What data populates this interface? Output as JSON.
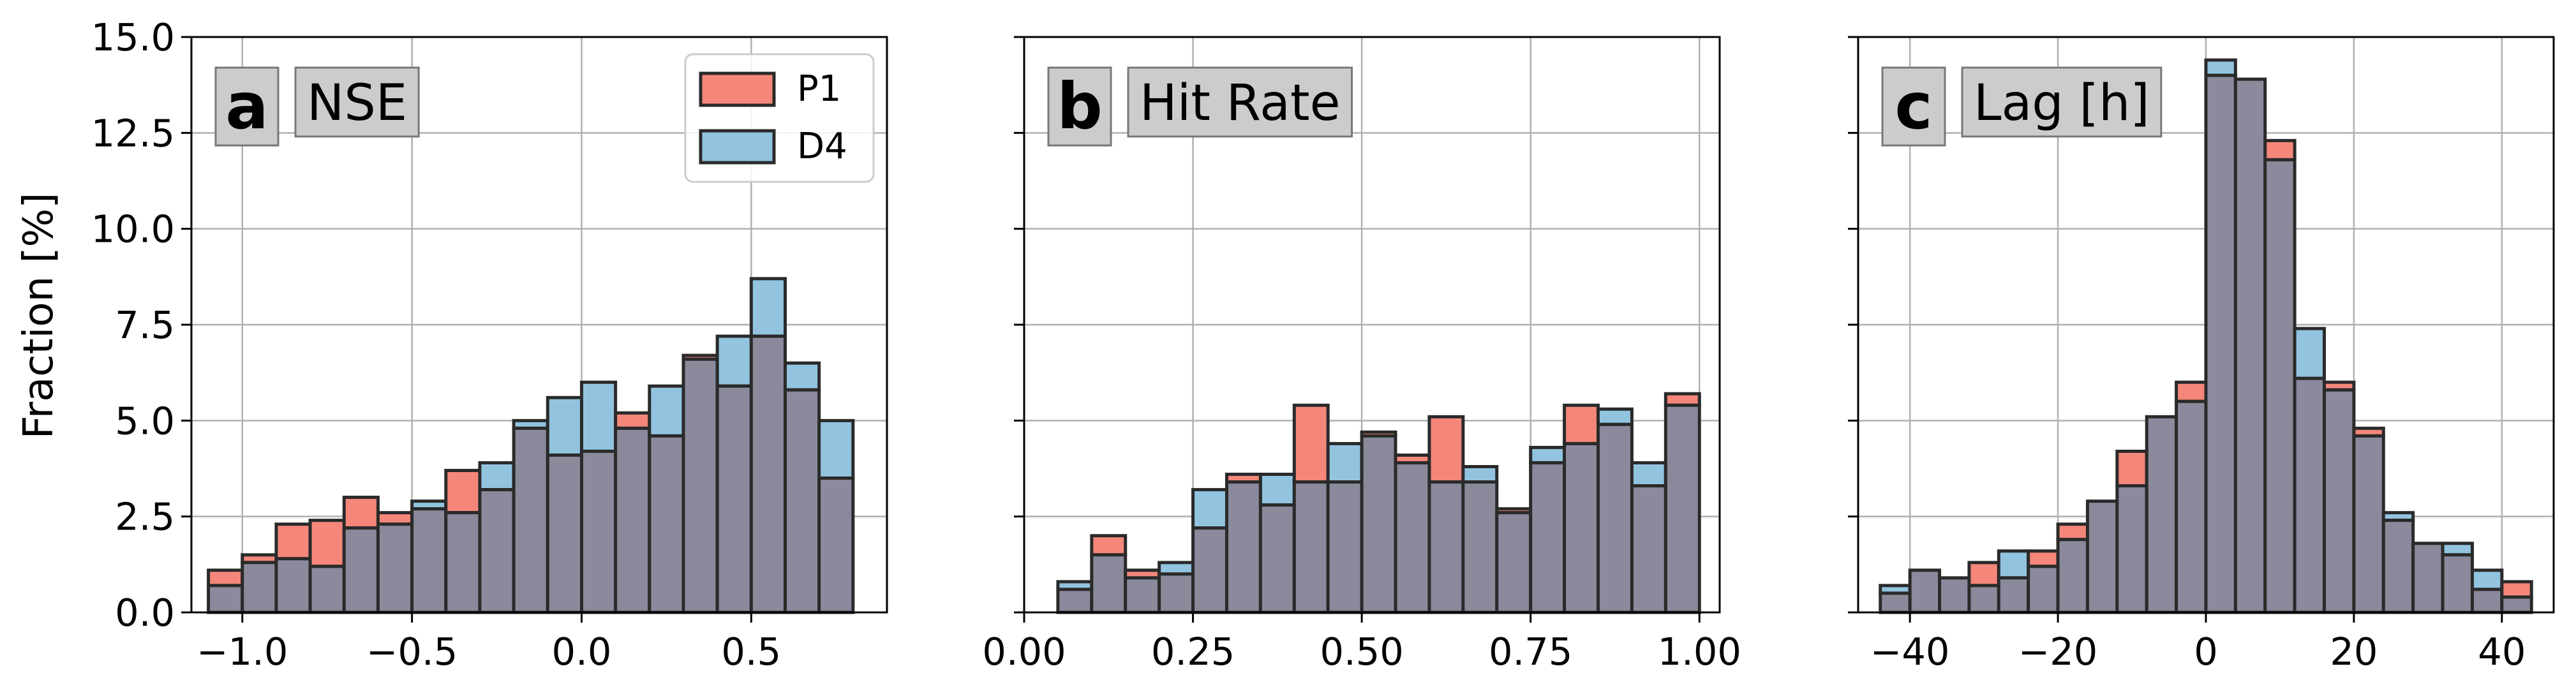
{
  "figure": {
    "ylabel": "Fraction [%]",
    "colors": {
      "P1": "#f4877a",
      "D4": "#92c4e0",
      "overlap": "#8a8a9c",
      "edge": "#2a2a2a",
      "grid": "#b0b0b0",
      "label_box": "#cccccc"
    }
  },
  "legend": {
    "entries": [
      {
        "label": "P1",
        "color": "#f4877a"
      },
      {
        "label": "D4",
        "color": "#92c4e0"
      }
    ],
    "location": "top-right of panel a"
  },
  "chart_data": [
    {
      "type": "bar",
      "letter": "a",
      "title": "NSE",
      "xlim": [
        -1.15,
        0.9
      ],
      "ylim": [
        0,
        15
      ],
      "xticks": [
        "−1.0",
        "−0.5",
        "0.0",
        "0.5"
      ],
      "xtick_values": [
        -1.0,
        -0.5,
        0.0,
        0.5
      ],
      "yticks": [
        "0.0",
        "2.5",
        "5.0",
        "7.5",
        "10.0",
        "12.5",
        "15.0"
      ],
      "bin_start": -1.1,
      "bin_width": 0.1,
      "series": [
        {
          "name": "P1",
          "values": [
            1.1,
            1.5,
            2.3,
            2.4,
            3.0,
            2.6,
            2.7,
            3.7,
            3.2,
            4.8,
            4.1,
            4.2,
            5.2,
            4.6,
            6.7,
            5.9,
            7.2,
            5.8,
            3.5
          ]
        },
        {
          "name": "D4",
          "values": [
            0.7,
            1.3,
            1.4,
            1.2,
            2.2,
            2.3,
            2.9,
            2.6,
            3.9,
            5.0,
            5.6,
            6.0,
            4.8,
            5.9,
            6.6,
            7.2,
            8.7,
            6.5,
            5.0
          ]
        }
      ]
    },
    {
      "type": "bar",
      "letter": "b",
      "title": "Hit Rate",
      "xlim": [
        0.0,
        1.03
      ],
      "ylim": [
        0,
        15
      ],
      "xticks": [
        "0.00",
        "0.25",
        "0.50",
        "0.75",
        "1.00"
      ],
      "xtick_values": [
        0.0,
        0.25,
        0.5,
        0.75,
        1.0
      ],
      "yticks": [
        "0.0",
        "2.5",
        "5.0",
        "7.5",
        "10.0",
        "12.5",
        "15.0"
      ],
      "bin_start": 0.05,
      "bin_width": 0.05,
      "series": [
        {
          "name": "P1",
          "values": [
            0.6,
            2.0,
            1.1,
            1.0,
            2.2,
            3.6,
            2.8,
            5.4,
            3.4,
            4.7,
            4.1,
            5.1,
            3.4,
            2.7,
            3.9,
            5.4,
            4.9,
            3.3,
            5.7
          ]
        },
        {
          "name": "D4",
          "values": [
            0.8,
            1.5,
            0.9,
            1.3,
            3.2,
            3.4,
            3.6,
            3.4,
            4.4,
            4.6,
            3.9,
            3.4,
            3.8,
            2.6,
            4.3,
            4.4,
            5.3,
            3.9,
            5.4
          ]
        }
      ]
    },
    {
      "type": "bar",
      "letter": "c",
      "title": "Lag [h]",
      "xlim": [
        -47,
        47
      ],
      "ylim": [
        0,
        15
      ],
      "xticks": [
        "−40",
        "−20",
        "0",
        "20",
        "40"
      ],
      "xtick_values": [
        -40,
        -20,
        0,
        20,
        40
      ],
      "yticks": [
        "0.0",
        "2.5",
        "5.0",
        "7.5",
        "10.0",
        "12.5",
        "15.0"
      ],
      "bin_start": -44,
      "bin_width": 4,
      "series": [
        {
          "name": "P1",
          "values": [
            0.5,
            1.1,
            0.9,
            1.3,
            0.9,
            1.6,
            2.3,
            2.9,
            4.2,
            5.1,
            6.0,
            14.0,
            13.9,
            12.3,
            6.1,
            6.0,
            4.8,
            2.4,
            1.8,
            1.5,
            0.6,
            0.8
          ]
        },
        {
          "name": "D4",
          "values": [
            0.7,
            1.1,
            0.9,
            0.7,
            1.6,
            1.2,
            1.9,
            2.9,
            3.3,
            5.1,
            5.5,
            14.4,
            13.9,
            11.8,
            7.4,
            5.8,
            4.6,
            2.6,
            1.8,
            1.8,
            1.1,
            0.4
          ]
        }
      ]
    }
  ]
}
